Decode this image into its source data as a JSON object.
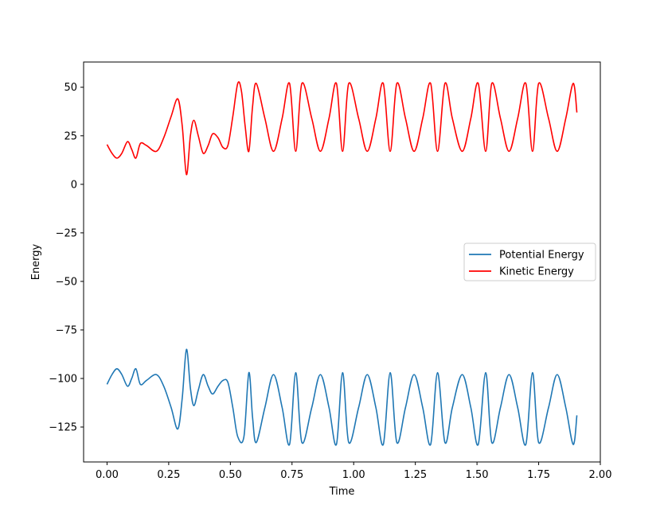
{
  "chart_data": {
    "type": "line",
    "title": "",
    "xlabel": "Time",
    "ylabel": "Energy",
    "xlim": [
      -0.095,
      2.0
    ],
    "ylim": [
      -143,
      63
    ],
    "xticks": [
      0.0,
      0.25,
      0.5,
      0.75,
      1.0,
      1.25,
      1.5,
      1.75,
      2.0
    ],
    "xtick_labels": [
      "0.00",
      "0.25",
      "0.50",
      "0.75",
      "1.00",
      "1.25",
      "1.50",
      "1.75",
      "2.00"
    ],
    "yticks": [
      50,
      25,
      0,
      -25,
      -50,
      -75,
      -100,
      -125
    ],
    "ytick_labels": [
      "50",
      "25",
      "0",
      "−25",
      "−50",
      "−75",
      "−100",
      "−125"
    ],
    "grid": false,
    "legend_position": "center-right",
    "series": [
      {
        "name": "Potential Energy",
        "color": "#1f77b4",
        "x": [
          0.0,
          0.02,
          0.04,
          0.06,
          0.083,
          0.1,
          0.117,
          0.135,
          0.16,
          0.2,
          0.23,
          0.26,
          0.287,
          0.305,
          0.322,
          0.338,
          0.352,
          0.37,
          0.39,
          0.41,
          0.428,
          0.45,
          0.47,
          0.49,
          0.51,
          0.53,
          0.555,
          0.575,
          0.59,
          0.605,
          0.64,
          0.675,
          0.71,
          0.74,
          0.765,
          0.79,
          0.83,
          0.865,
          0.9,
          0.93,
          0.955,
          0.98,
          1.02,
          1.055,
          1.09,
          1.12,
          1.148,
          1.175,
          1.21,
          1.245,
          1.28,
          1.312,
          1.34,
          1.37,
          1.4,
          1.44,
          1.475,
          1.505,
          1.535,
          1.56,
          1.595,
          1.63,
          1.665,
          1.698,
          1.725,
          1.75,
          1.79,
          1.825,
          1.86,
          1.89,
          1.905
        ],
        "y": [
          -103,
          -98,
          -95,
          -98,
          -104,
          -100,
          -95,
          -103,
          -101,
          -98,
          -104,
          -115,
          -126,
          -110,
          -85,
          -105,
          -114,
          -106,
          -98,
          -104,
          -108,
          -104,
          -101,
          -102,
          -115,
          -130,
          -130,
          -97,
          -120,
          -133,
          -115,
          -98,
          -115,
          -134,
          -97,
          -133,
          -115,
          -98,
          -115,
          -134,
          -97,
          -133,
          -115,
          -98,
          -115,
          -134,
          -97,
          -133,
          -115,
          -98,
          -115,
          -134,
          -97,
          -133,
          -115,
          -98,
          -115,
          -134,
          -97,
          -133,
          -115,
          -98,
          -115,
          -134,
          -97,
          -133,
          -115,
          -98,
          -115,
          -134,
          -119
        ]
      },
      {
        "name": "Kinetic Energy",
        "color": "#ff0000",
        "x": [
          0.0,
          0.02,
          0.04,
          0.06,
          0.083,
          0.1,
          0.117,
          0.135,
          0.16,
          0.2,
          0.23,
          0.26,
          0.287,
          0.305,
          0.322,
          0.338,
          0.352,
          0.37,
          0.39,
          0.41,
          0.428,
          0.45,
          0.47,
          0.49,
          0.51,
          0.53,
          0.545,
          0.56,
          0.575,
          0.59,
          0.605,
          0.64,
          0.675,
          0.71,
          0.74,
          0.765,
          0.79,
          0.83,
          0.865,
          0.9,
          0.93,
          0.955,
          0.98,
          1.02,
          1.055,
          1.09,
          1.12,
          1.148,
          1.175,
          1.21,
          1.245,
          1.28,
          1.312,
          1.34,
          1.37,
          1.4,
          1.44,
          1.475,
          1.505,
          1.535,
          1.56,
          1.595,
          1.63,
          1.665,
          1.698,
          1.725,
          1.75,
          1.79,
          1.825,
          1.86,
          1.89,
          1.905
        ],
        "y": [
          20.5,
          16,
          13.5,
          16,
          22,
          18,
          13.5,
          21,
          20,
          17,
          24,
          35,
          44,
          30,
          5,
          25,
          33,
          25,
          16,
          20,
          26,
          24,
          19,
          20,
          35,
          52,
          48,
          30,
          17,
          40,
          52,
          34,
          17,
          34,
          52,
          17,
          52,
          34,
          17,
          34,
          52,
          17,
          52,
          34,
          17,
          34,
          52,
          17,
          52,
          34,
          17,
          34,
          52,
          17,
          52,
          34,
          17,
          34,
          52,
          17,
          52,
          34,
          17,
          34,
          52,
          17,
          52,
          34,
          17,
          34,
          52,
          37
        ]
      }
    ]
  }
}
